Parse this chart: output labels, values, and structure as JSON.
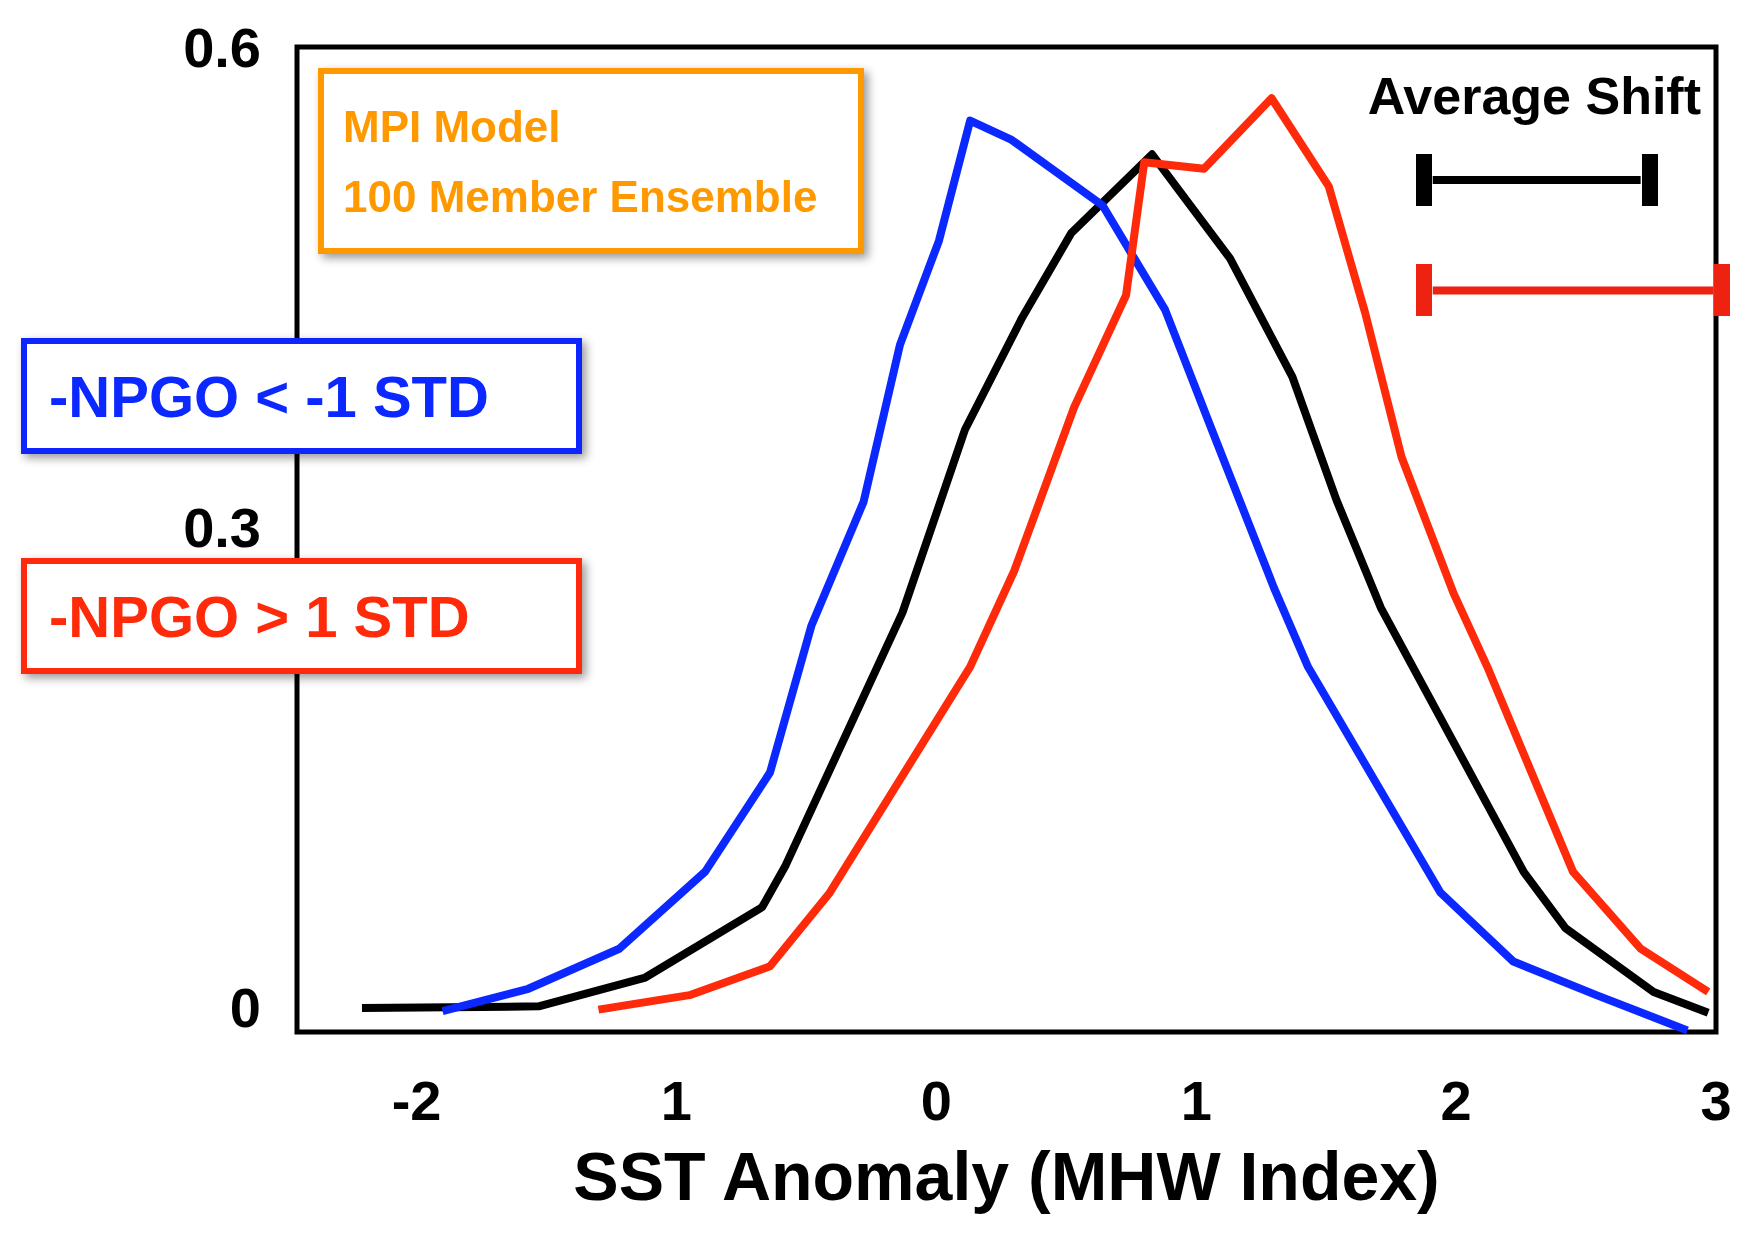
{
  "chart_data": {
    "type": "line",
    "xlabel": "SST Anomaly (MHW Index)",
    "xlim": [
      -2.46,
      3
    ],
    "xticks": [
      -2,
      {
        "value": -1,
        "label": "1"
      },
      0,
      1,
      2,
      3
    ],
    "ylim": [
      -0.015,
      0.6
    ],
    "yticks": [
      0,
      0.3,
      0.6
    ],
    "grid": false,
    "marker": "none",
    "legend": "left",
    "annotations": [
      "Average Shift",
      "MPI Model",
      "100 Member Ensemble"
    ],
    "series": [
      {
        "color": "#000000",
        "x": [
          -2.21,
          -1.53,
          -1.12,
          -0.67,
          -0.58,
          -0.13,
          0.11,
          0.33,
          0.52,
          0.83,
          1.13,
          1.37,
          1.54,
          1.71,
          2.26,
          2.42,
          2.76,
          2.97
        ],
        "values": [
          0,
          0.001,
          0.019,
          0.063,
          0.089,
          0.247,
          0.361,
          0.431,
          0.484,
          0.533,
          0.468,
          0.394,
          0.317,
          0.25,
          0.085,
          0.05,
          0.01,
          -0.003
        ]
      },
      {
        "name": "-NPGO < -1 STD",
        "color": "#0a28ff",
        "x": [
          -1.9,
          -1.57,
          -1.22,
          -0.89,
          -0.64,
          -0.48,
          -0.28,
          -0.14,
          0.01,
          0.13,
          0.29,
          0.64,
          0.88,
          1.06,
          1.3,
          1.43,
          1.94,
          2.22,
          2.54,
          2.89
        ],
        "values": [
          -0.002,
          0.012,
          0.037,
          0.085,
          0.147,
          0.239,
          0.316,
          0.414,
          0.479,
          0.554,
          0.542,
          0.501,
          0.436,
          0.361,
          0.262,
          0.213,
          0.072,
          0.029,
          0.008,
          -0.014
        ]
      },
      {
        "name": "-NPGO > 1 STD",
        "color": "#ff2a0a",
        "x": [
          -1.3,
          -0.95,
          -0.64,
          -0.41,
          0.13,
          0.3,
          0.53,
          0.73,
          0.8,
          1.03,
          1.29,
          1.51,
          1.65,
          1.79,
          1.99,
          2.12,
          2.45,
          2.71,
          2.97
        ],
        "values": [
          -0.001,
          0.008,
          0.026,
          0.072,
          0.213,
          0.273,
          0.375,
          0.445,
          0.528,
          0.524,
          0.568,
          0.513,
          0.434,
          0.344,
          0.259,
          0.213,
          0.085,
          0.037,
          0.01
        ]
      },
      {
        "color": "#000000",
        "x": [
          1.91,
          2.71
        ],
        "values": [
          0.517,
          0.517
        ]
      },
      {
        "color": "#ee2211",
        "x": [
          1.91,
          2.99
        ],
        "values": [
          0.448,
          0.448
        ]
      }
    ]
  }
}
